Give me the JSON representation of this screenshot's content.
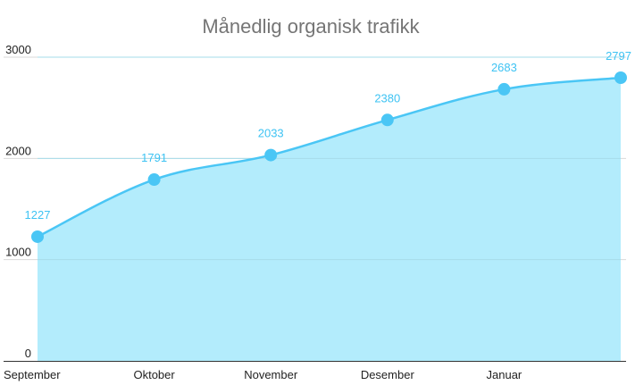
{
  "chart_data": {
    "type": "area",
    "title": "Månedlig organisk trafikk",
    "xlabel": "",
    "ylabel": "",
    "categories": [
      "September",
      "Oktober",
      "November",
      "Desember",
      "Januar",
      ""
    ],
    "x_tick_labels": [
      "September",
      "Oktober",
      "November",
      "Desember",
      "Januar"
    ],
    "values": [
      1227,
      1791,
      2033,
      2380,
      2683,
      2797
    ],
    "data_labels": [
      "1227",
      "1791",
      "2033",
      "2380",
      "2683",
      "2797"
    ],
    "ylim": [
      0,
      3000
    ],
    "yticks": [
      "0",
      "1000",
      "2000",
      "3000"
    ],
    "ytick_values": [
      0,
      1000,
      2000,
      3000
    ],
    "grid": true,
    "legend": "none",
    "colors": {
      "line": "#4ac6f5",
      "fill": "#b3ecfc",
      "label": "#3ec3f3",
      "grid": "#d9d9d9",
      "axis": "#333333"
    }
  }
}
